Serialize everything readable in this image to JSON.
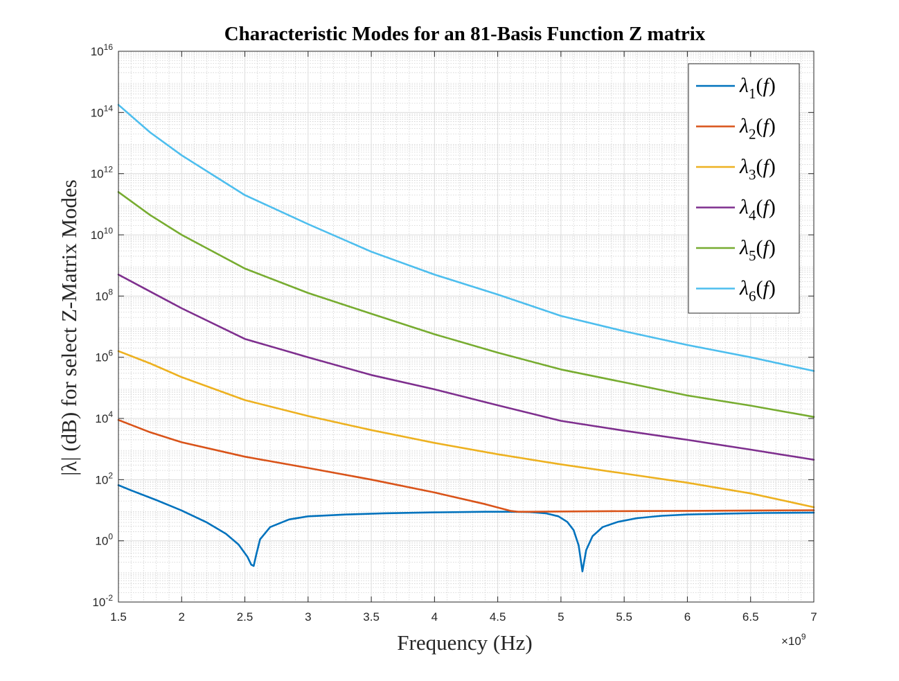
{
  "chart_data": {
    "type": "line",
    "title": "Characteristic Modes for an 81-Basis Function Z matrix",
    "xlabel": "Frequency (Hz)",
    "ylabel": "|λ| (dB) for select Z-Matrix Modes",
    "x_multiplier": "×10",
    "x_multiplier_exp": "9",
    "xlim": [
      1.5,
      7
    ],
    "ylim_log10": [
      -2,
      16
    ],
    "yscale": "log",
    "grid": true,
    "minor_grid": true,
    "legend_position": "top-right",
    "x_ticks": [
      "1.5",
      "2",
      "2.5",
      "3",
      "3.5",
      "4",
      "4.5",
      "5",
      "5.5",
      "6",
      "6.5",
      "7"
    ],
    "y_ticks": [
      {
        "base": "10",
        "exp": "-2"
      },
      {
        "base": "10",
        "exp": "0"
      },
      {
        "base": "10",
        "exp": "2"
      },
      {
        "base": "10",
        "exp": "4"
      },
      {
        "base": "10",
        "exp": "6"
      },
      {
        "base": "10",
        "exp": "8"
      },
      {
        "base": "10",
        "exp": "10"
      },
      {
        "base": "10",
        "exp": "12"
      },
      {
        "base": "10",
        "exp": "14"
      },
      {
        "base": "10",
        "exp": "16"
      }
    ],
    "series": [
      {
        "label": {
          "sym": "λ",
          "sub": "1",
          "open": "(",
          "var": "f",
          "close": ")"
        },
        "color": "#0072BD",
        "x": [
          1.5,
          1.6,
          1.8,
          2.0,
          2.2,
          2.35,
          2.45,
          2.52,
          2.55,
          2.57,
          2.59,
          2.62,
          2.7,
          2.85,
          3.0,
          3.3,
          3.6,
          4.0,
          4.4,
          4.6,
          4.75,
          4.88,
          4.98,
          5.05,
          5.1,
          5.14,
          5.17,
          5.2,
          5.25,
          5.33,
          5.45,
          5.6,
          5.8,
          6.0,
          6.3,
          6.6,
          7.0
        ],
        "y_log10": [
          1.82,
          1.65,
          1.33,
          0.99,
          0.6,
          0.23,
          -0.12,
          -0.52,
          -0.78,
          -0.82,
          -0.45,
          0.05,
          0.45,
          0.7,
          0.8,
          0.86,
          0.9,
          0.93,
          0.95,
          0.95,
          0.94,
          0.9,
          0.8,
          0.62,
          0.35,
          -0.15,
          -1.0,
          -0.3,
          0.15,
          0.45,
          0.62,
          0.74,
          0.82,
          0.86,
          0.89,
          0.91,
          0.92
        ]
      },
      {
        "label": {
          "sym": "λ",
          "sub": "2",
          "open": "(",
          "var": "f",
          "close": ")"
        },
        "color": "#D95319",
        "x": [
          1.5,
          1.75,
          2.0,
          2.5,
          3.0,
          3.5,
          4.0,
          4.4,
          4.6,
          4.66,
          4.75,
          5.0,
          5.5,
          6.0,
          6.5,
          7.0
        ],
        "y_log10": [
          3.95,
          3.55,
          3.22,
          2.75,
          2.38,
          2.0,
          1.58,
          1.2,
          0.98,
          0.95,
          0.95,
          0.96,
          0.97,
          0.98,
          0.99,
          1.0
        ]
      },
      {
        "label": {
          "sym": "λ",
          "sub": "3",
          "open": "(",
          "var": "f",
          "close": ")"
        },
        "color": "#EDB120",
        "x": [
          1.5,
          1.75,
          2.0,
          2.5,
          3.0,
          3.5,
          4.0,
          4.5,
          5.0,
          5.5,
          6.0,
          6.5,
          7.0
        ],
        "y_log10": [
          6.2,
          5.8,
          5.35,
          4.6,
          4.08,
          3.62,
          3.2,
          2.83,
          2.5,
          2.2,
          1.9,
          1.55,
          1.1
        ]
      },
      {
        "label": {
          "sym": "λ",
          "sub": "4",
          "open": "(",
          "var": "f",
          "close": ")"
        },
        "color": "#7E2F8E",
        "x": [
          1.5,
          1.75,
          2.0,
          2.5,
          3.0,
          3.5,
          4.0,
          4.5,
          5.0,
          5.5,
          6.0,
          6.5,
          7.0
        ],
        "y_log10": [
          8.7,
          8.15,
          7.6,
          6.6,
          6.0,
          5.42,
          4.95,
          4.43,
          3.92,
          3.6,
          3.3,
          2.98,
          2.65
        ]
      },
      {
        "label": {
          "sym": "λ",
          "sub": "5",
          "open": "(",
          "var": "f",
          "close": ")"
        },
        "color": "#77AC30",
        "x": [
          1.5,
          1.75,
          2.0,
          2.5,
          3.0,
          3.5,
          4.0,
          4.5,
          5.0,
          5.5,
          6.0,
          6.5,
          7.0
        ],
        "y_log10": [
          11.4,
          10.65,
          10.0,
          8.9,
          8.1,
          7.42,
          6.75,
          6.15,
          5.6,
          5.18,
          4.75,
          4.42,
          4.05
        ]
      },
      {
        "label": {
          "sym": "λ",
          "sub": "6",
          "open": "(",
          "var": "f",
          "close": ")"
        },
        "color": "#4DBEEE",
        "x": [
          1.5,
          1.75,
          2.0,
          2.5,
          3.0,
          3.5,
          4.0,
          4.5,
          5.0,
          5.5,
          6.0,
          6.5,
          7.0
        ],
        "y_log10": [
          14.25,
          13.35,
          12.6,
          11.3,
          10.35,
          9.45,
          8.7,
          8.05,
          7.35,
          6.85,
          6.4,
          6.0,
          5.55
        ]
      }
    ]
  }
}
